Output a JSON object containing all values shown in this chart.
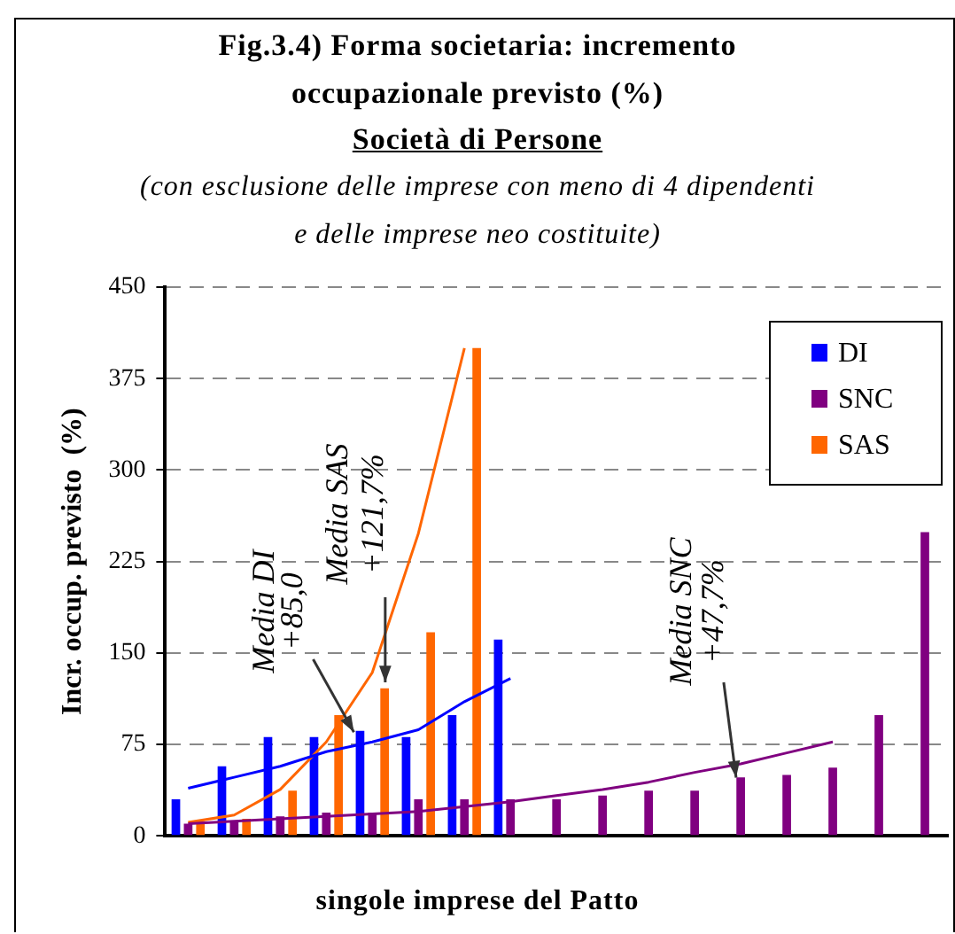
{
  "chart_data": {
    "type": "bar",
    "title": "Fig.3.4)  Forma societaria: incremento occupazionale previsto (%)",
    "subtitle": "Società di Persone",
    "xlabel": "singole imprese del Patto",
    "ylabel": "Incr. occup. previsto  (%)",
    "categories": [
      null,
      null,
      null,
      null,
      null,
      null,
      null,
      null,
      null,
      null,
      null,
      null,
      null,
      null,
      null,
      null,
      null
    ],
    "series": [
      {
        "name": "DI",
        "color": "#0000ff",
        "values": [
          30,
          57,
          81,
          81,
          86,
          81,
          99,
          161,
          null,
          null,
          null,
          null,
          null,
          null,
          null,
          null,
          null
        ]
      },
      {
        "name": "SNC",
        "color": "#800080",
        "values": [
          10,
          12,
          16,
          19,
          19,
          30,
          30,
          30,
          30,
          33,
          37,
          37,
          48,
          50,
          56,
          99,
          249
        ]
      },
      {
        "name": "SAS",
        "color": "#ff6600",
        "values": [
          12,
          14,
          37,
          99,
          121,
          167,
          400,
          null,
          null,
          null,
          null,
          null,
          null,
          null,
          null,
          null,
          null
        ]
      },
      {
        "type": "line",
        "color": "#0000ff",
        "values": [
          39,
          48,
          57,
          69,
          77,
          87,
          110,
          129,
          null,
          null,
          null,
          null,
          null,
          null,
          null,
          null,
          null
        ]
      },
      {
        "type": "line",
        "color": "#800080",
        "values": [
          10,
          12,
          14,
          16,
          18,
          20,
          24,
          28,
          33,
          38,
          44,
          52,
          59,
          68,
          77,
          null,
          null
        ]
      },
      {
        "type": "line",
        "color": "#ff6600",
        "values": [
          11,
          17,
          38,
          77,
          134,
          248,
          400,
          null,
          null,
          null,
          null,
          null,
          null,
          null,
          null,
          null,
          null
        ]
      }
    ],
    "ylim": [
      0,
      450
    ],
    "yticks": [
      0,
      75,
      150,
      225,
      300,
      375,
      450
    ],
    "grid": "y",
    "legend": "top right",
    "marker": "none",
    "annotations": [
      "(con esclusione delle imprese con meno di 4 dipendenti e delle imprese neo costituite)",
      {
        "text": "Media DI\n+85,0",
        "y": 85
      },
      "Media SAS\n+121,7%",
      {
        "text": "Media SNC\n+47,7%",
        "y": 47.7
      }
    ]
  }
}
